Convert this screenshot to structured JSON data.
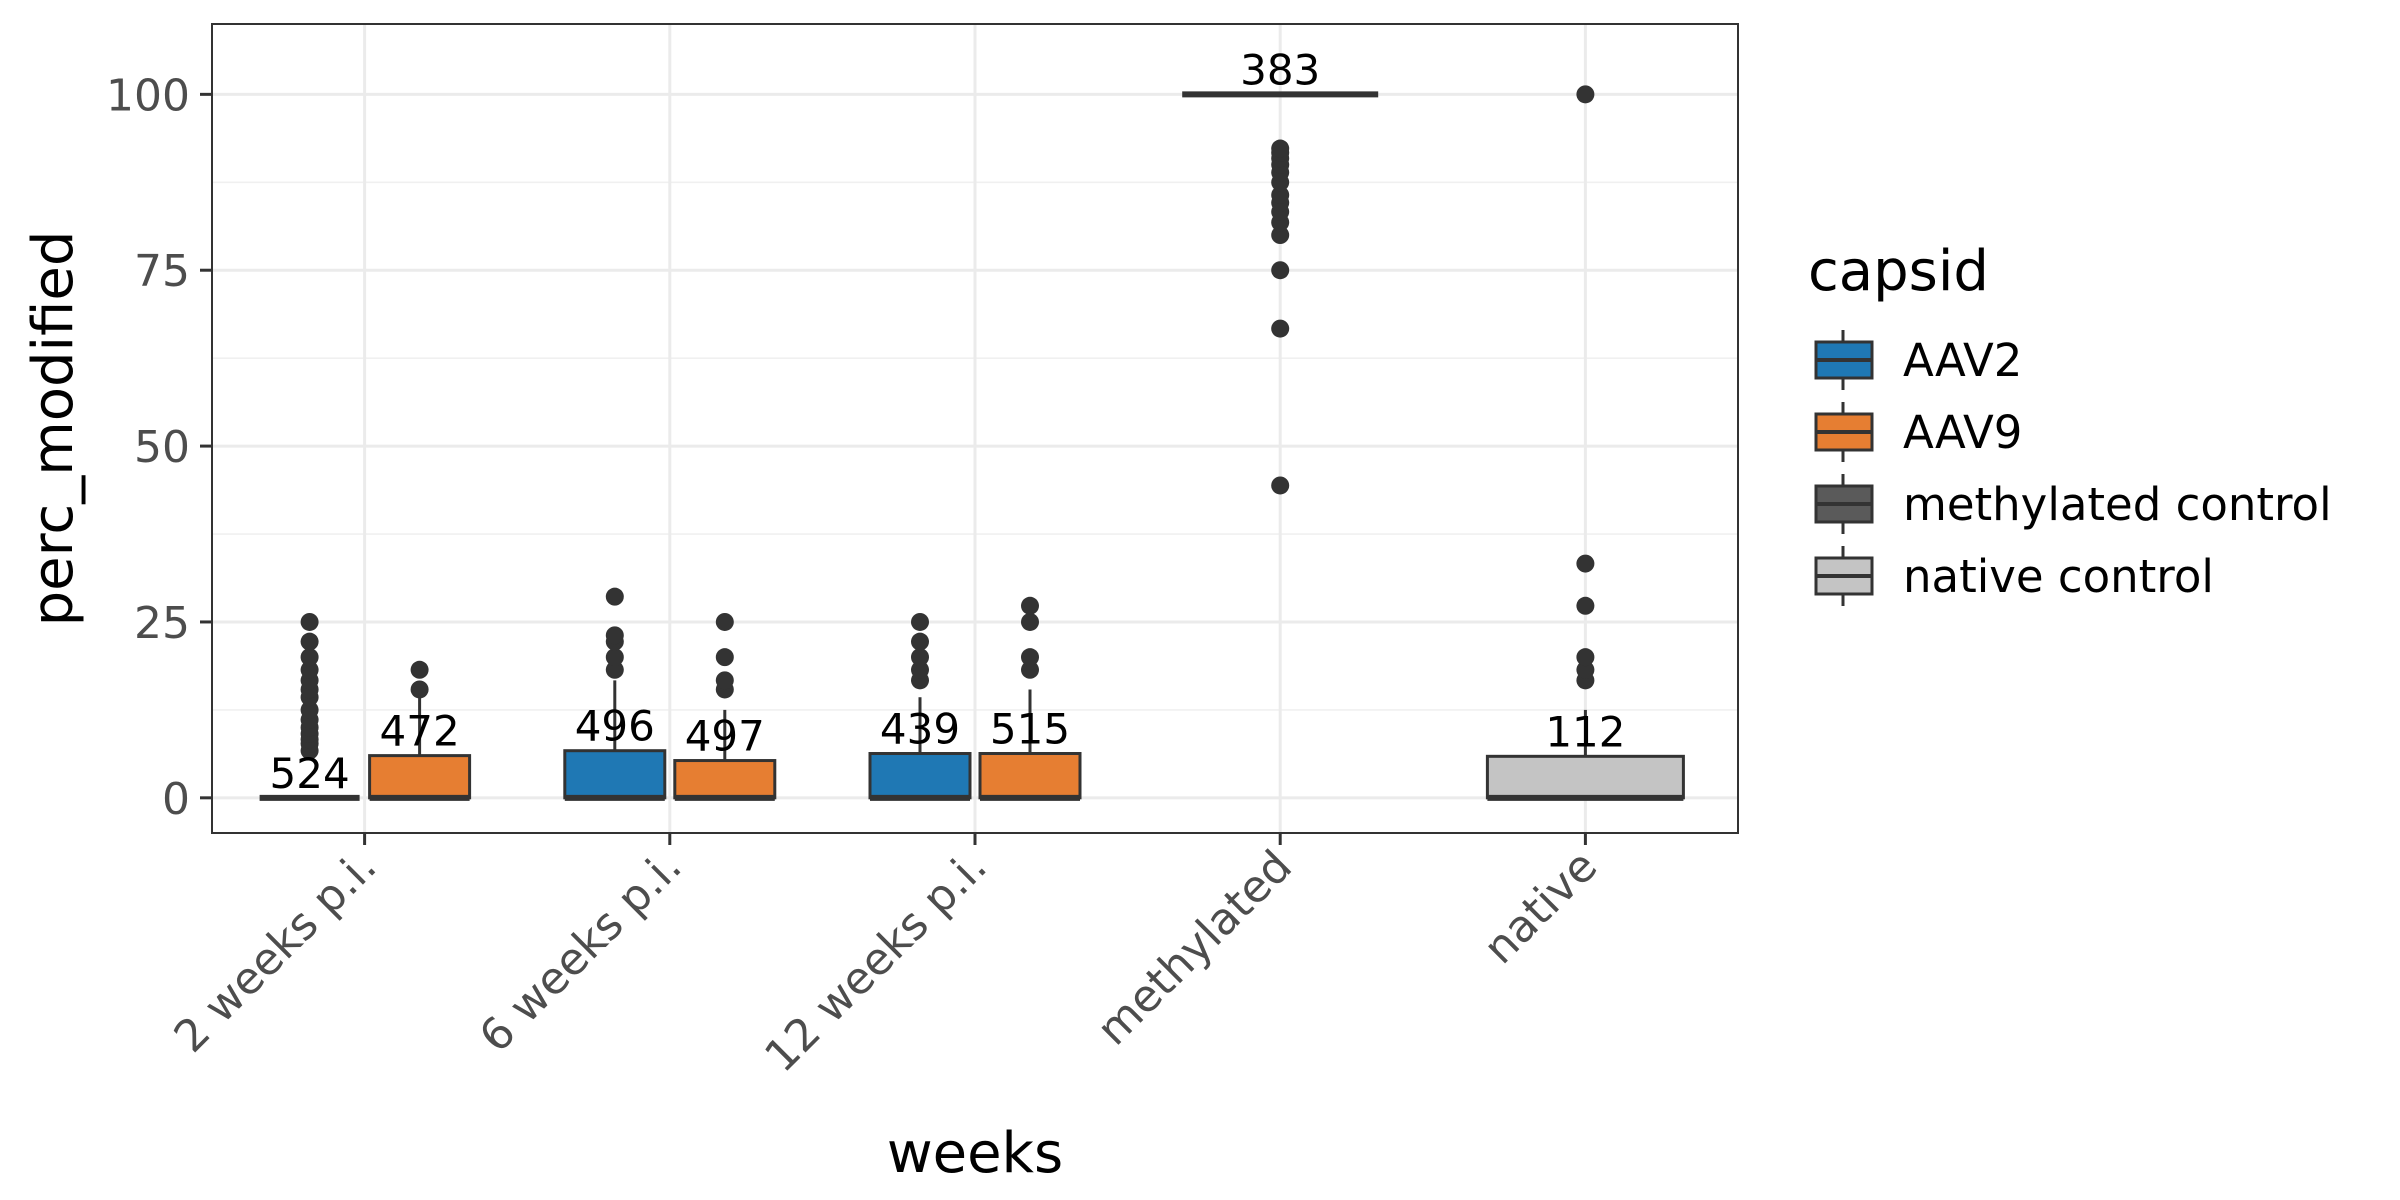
{
  "chart_data": {
    "type": "box",
    "xlabel": "weeks",
    "ylabel": "perc_modified",
    "ylim": [
      -5,
      110
    ],
    "yticks": [
      0,
      25,
      50,
      75,
      100
    ],
    "grid": true,
    "categories": [
      "2 weeks p.i.",
      "6 weeks p.i.",
      "12 weeks p.i.",
      "methylated",
      "native"
    ],
    "legend": {
      "title": "capsid",
      "position": "right",
      "entries": [
        {
          "name": "AAV2",
          "color": "#1f78b4"
        },
        {
          "name": "AAV9",
          "color": "#e67e32"
        },
        {
          "name": "methylated control",
          "color": "#5a5a5a"
        },
        {
          "name": "native control",
          "color": "#c4c4c4"
        }
      ]
    },
    "boxes": [
      {
        "category": "2 weeks p.i.",
        "capsid": "AAV2",
        "offset": -1,
        "q1": 0,
        "median": 0,
        "q3": 0,
        "whisker_low": 0,
        "whisker_high": 0,
        "outliers": [
          6.7,
          7.7,
          8.3,
          9.1,
          10,
          11.1,
          12.5,
          14.3,
          15.4,
          16.7,
          18.2,
          20,
          22.2,
          25
        ],
        "n_label": "524"
      },
      {
        "category": "2 weeks p.i.",
        "capsid": "AAV9",
        "offset": 1,
        "q1": 0,
        "median": 0,
        "q3": 6,
        "whisker_low": 0,
        "whisker_high": 14.3,
        "outliers": [
          15.4,
          18.2
        ],
        "n_label": "472"
      },
      {
        "category": "6 weeks p.i.",
        "capsid": "AAV2",
        "offset": -1,
        "q1": 0,
        "median": 0,
        "q3": 6.7,
        "whisker_low": 0,
        "whisker_high": 16.7,
        "outliers": [
          18.2,
          20,
          22.2,
          23.1,
          28.6
        ],
        "n_label": "496"
      },
      {
        "category": "6 weeks p.i.",
        "capsid": "AAV9",
        "offset": 1,
        "q1": 0,
        "median": 0,
        "q3": 5.3,
        "whisker_low": 0,
        "whisker_high": 12.5,
        "outliers": [
          15.4,
          16.7,
          20,
          25
        ],
        "n_label": "497"
      },
      {
        "category": "12 weeks p.i.",
        "capsid": "AAV2",
        "offset": -1,
        "q1": 0,
        "median": 0,
        "q3": 6.3,
        "whisker_low": 0,
        "whisker_high": 14.3,
        "outliers": [
          16.7,
          18.2,
          20,
          22.2,
          25
        ],
        "n_label": "439"
      },
      {
        "category": "12 weeks p.i.",
        "capsid": "AAV9",
        "offset": 1,
        "q1": 0,
        "median": 0,
        "q3": 6.3,
        "whisker_low": 0,
        "whisker_high": 15.4,
        "outliers": [
          18.2,
          20,
          25,
          27.3
        ],
        "n_label": "515"
      },
      {
        "category": "methylated",
        "capsid": "methylated control",
        "offset": 0,
        "q1": 100,
        "median": 100,
        "q3": 100,
        "whisker_low": 100,
        "whisker_high": 100,
        "outliers": [
          44.4,
          66.7,
          75,
          80,
          81.8,
          83.3,
          84.6,
          85.7,
          87.5,
          88.9,
          90,
          90.9,
          91.7,
          92.3
        ],
        "n_label": "383"
      },
      {
        "category": "native",
        "capsid": "native control",
        "offset": 0,
        "q1": 0,
        "median": 0,
        "q3": 5.9,
        "whisker_low": 0,
        "whisker_high": 12.5,
        "outliers": [
          16.7,
          18.2,
          20,
          27.3,
          33.3,
          100
        ],
        "n_label": "112"
      }
    ]
  }
}
